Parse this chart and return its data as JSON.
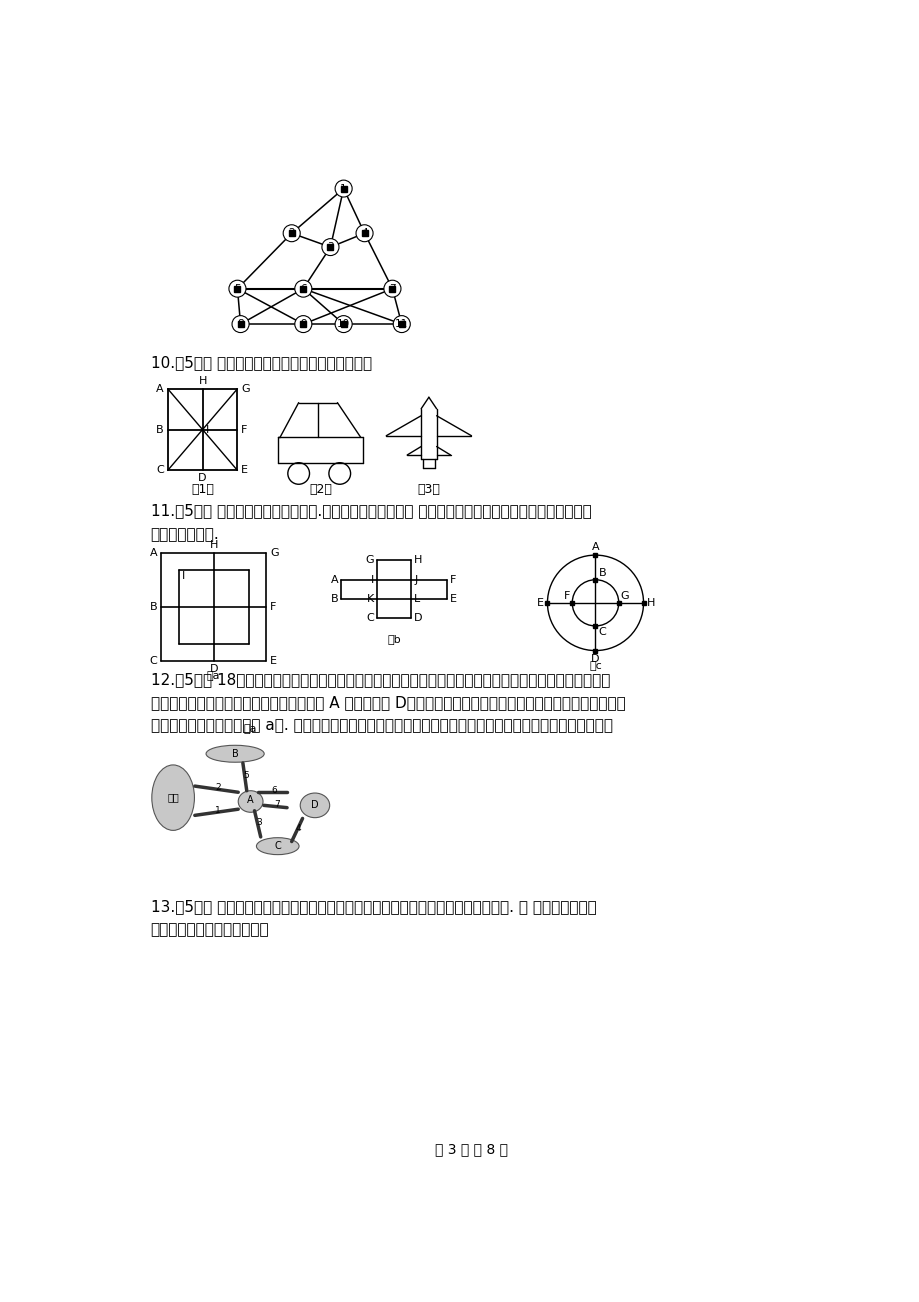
{
  "bg_color": "#ffffff",
  "q10_text": "10.（5分） 观察下面的图，看各至少用几笔画成？",
  "q11_text": "11.（5分） 判断下列图形能否一笔画.若能，请给出一种画法 若不能，请加一条线或去一条线，将其改成",
  "q11_text2": "可一笔画的图形.",
  "q12_text": "12.（5分） 18世纪的哥尼斯堡城是一座美丽的城市，在这座城市中有一条布勒格尔河横贯城区，这条河有两",
  "q12_text2": "条支流在城市中心汇合，汇合处有一座小岛 A 和一座半岛 D，人们在这里建了一座公园，公园中有七座桥把河两岘",
  "q12_text3": "和两个小岛连接起来（如图 a）. 如果游人要一次走过这七座桥，而且对每座桥只许走一次，问如何走才能成功？",
  "q13_text": "13.（5分） 如下图所示，两条河流的交汇处有两个岛，有七座桥连接这两个岛及河岘. 问 一个散步者能否",
  "q13_text2": "一次不重复地走遇这七座桥？",
  "page_text": "第 3 页 共 8 页"
}
